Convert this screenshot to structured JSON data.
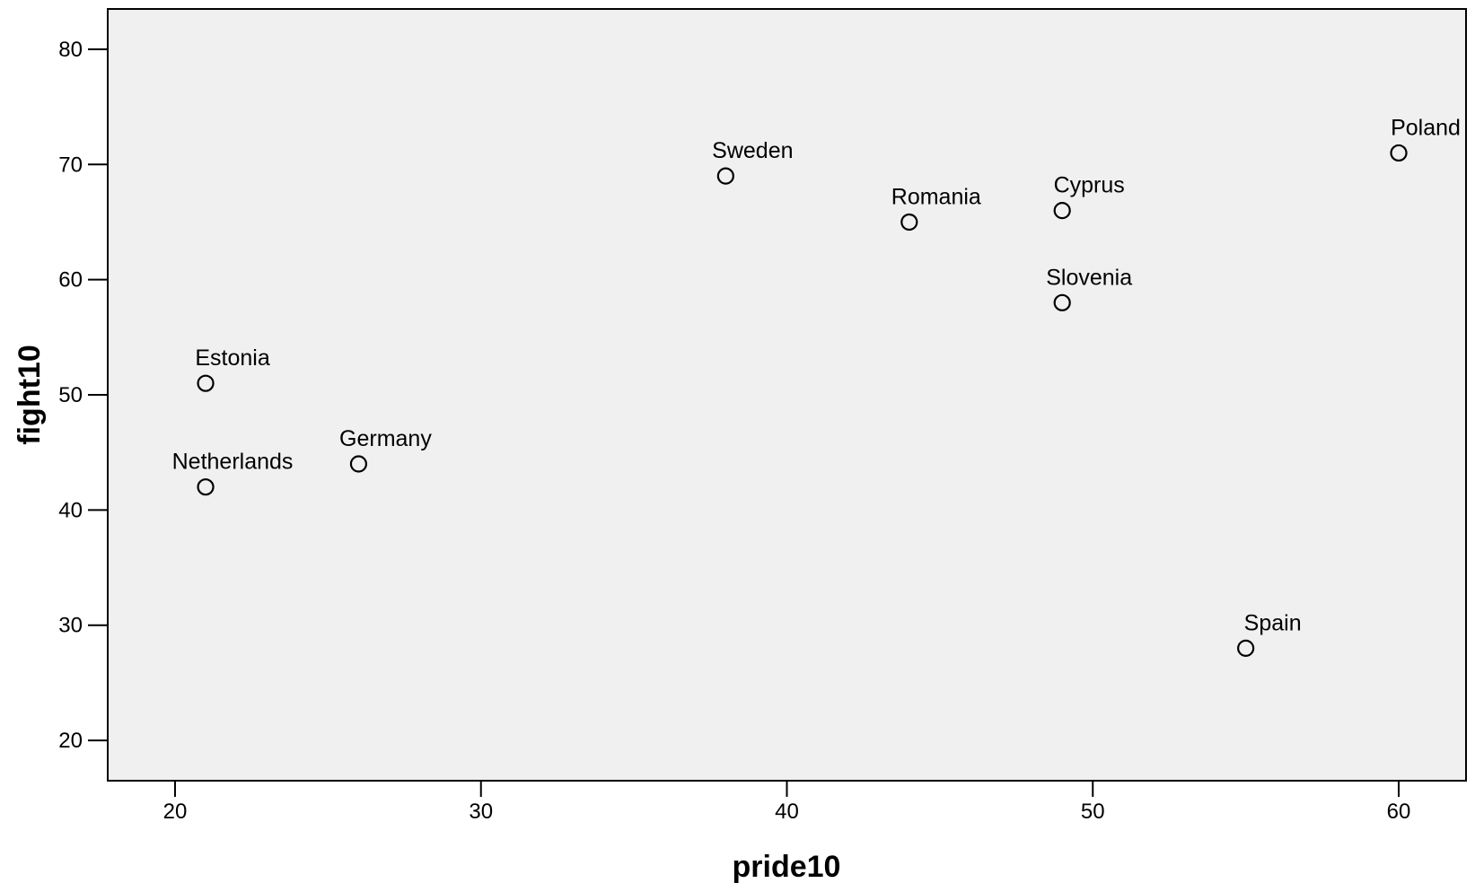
{
  "chart_data": {
    "type": "scatter",
    "xlabel": "pride10",
    "ylabel": "fight10",
    "xlim": [
      17.8,
      62.2
    ],
    "ylim": [
      16.5,
      83.5
    ],
    "xticks": [
      20,
      30,
      40,
      50,
      60
    ],
    "yticks": [
      20,
      30,
      40,
      50,
      60,
      70,
      80
    ],
    "grid": false,
    "colors": {
      "plot_background": "#f0f0f0",
      "marker_stroke": "#000000",
      "axis": "#000000"
    },
    "points": [
      {
        "label": "Estonia",
        "x": 21,
        "y": 51
      },
      {
        "label": "Netherlands",
        "x": 21,
        "y": 42
      },
      {
        "label": "Germany",
        "x": 26,
        "y": 44
      },
      {
        "label": "Sweden",
        "x": 38,
        "y": 69
      },
      {
        "label": "Romania",
        "x": 44,
        "y": 65
      },
      {
        "label": "Cyprus",
        "x": 49,
        "y": 66
      },
      {
        "label": "Slovenia",
        "x": 49,
        "y": 58
      },
      {
        "label": "Spain",
        "x": 55,
        "y": 28
      },
      {
        "label": "Poland",
        "x": 60,
        "y": 71
      }
    ]
  }
}
